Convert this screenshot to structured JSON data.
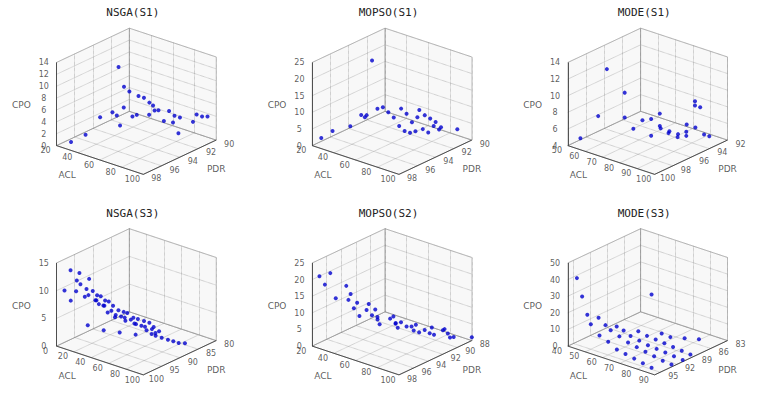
{
  "chart_data": [
    {
      "type": "scatter3d",
      "title": "NSGA(S1)",
      "x_label": "ACL",
      "y_label": "PDR",
      "z_label": "CPO",
      "xlim": [
        20,
        100
      ],
      "ylim": [
        90,
        98
      ],
      "zlim": [
        0,
        14
      ],
      "xticks": [
        20,
        40,
        60,
        80,
        100
      ],
      "yticks": [
        90,
        92,
        94,
        96,
        98
      ],
      "zticks": [
        0,
        2,
        4,
        6,
        8,
        10,
        12,
        14
      ],
      "color": "#0000CD",
      "grid": true,
      "x": [
        25,
        30,
        35,
        38,
        42,
        45,
        40,
        48,
        52,
        55,
        60,
        65,
        70,
        75,
        82,
        52,
        57,
        62,
        62,
        67,
        72,
        67,
        72,
        77,
        77,
        82,
        87,
        87,
        92
      ],
      "y": [
        97,
        96,
        95,
        94,
        94,
        94,
        93,
        93,
        93,
        92,
        92,
        91,
        91,
        91,
        90,
        95,
        95,
        95,
        94,
        94,
        94,
        93,
        93,
        93,
        92,
        92,
        91,
        90,
        90
      ],
      "z": [
        0.2,
        1.0,
        3.5,
        3.8,
        3.5,
        2.0,
        4.0,
        3.0,
        3.5,
        3.0,
        4.0,
        3.5,
        3.0,
        3.0,
        3.2,
        13.0,
        10.0,
        9.5,
        8.0,
        8.0,
        7.5,
        6.0,
        5.5,
        4.0,
        3.0,
        1.5,
        3.0,
        3.2,
        3.5
      ]
    },
    {
      "type": "scatter3d",
      "title": "MOPSO(S1)",
      "x_label": "ACL",
      "y_label": "PDR",
      "z_label": "CPO",
      "xlim": [
        20,
        100
      ],
      "ylim": [
        90,
        98
      ],
      "zlim": [
        0,
        25
      ],
      "xticks": [
        20,
        40,
        60,
        80,
        100
      ],
      "yticks": [
        90,
        92,
        94,
        96,
        98
      ],
      "zticks": [
        0,
        5,
        10,
        15,
        20,
        25
      ],
      "color": "#0000CD",
      "grid": true,
      "x": [
        20,
        22,
        30,
        35,
        40,
        45,
        50,
        55,
        60,
        65,
        70,
        75,
        80,
        85,
        90,
        60,
        65,
        70,
        75,
        80,
        85,
        90,
        95,
        60,
        65,
        70,
        75,
        80,
        95
      ],
      "y": [
        97,
        96,
        95,
        94,
        95,
        95,
        95,
        95,
        95,
        95,
        95,
        95,
        95,
        95,
        95,
        93,
        93,
        93,
        93,
        93,
        93,
        93,
        93,
        91,
        91,
        91,
        91,
        91,
        91
      ],
      "z": [
        1.0,
        2.0,
        3.0,
        5.0,
        7.5,
        8.0,
        25.0,
        11.0,
        12.0,
        11.0,
        10.0,
        8.0,
        7.0,
        7.0,
        8.0,
        9.0,
        8.0,
        6.0,
        8.0,
        5.0,
        4.5,
        7.0,
        6.5,
        6.0,
        5.0,
        4.5,
        4.0,
        3.0,
        4.0
      ]
    },
    {
      "type": "scatter3d",
      "title": "MODE(S1)",
      "x_label": "ACL",
      "y_label": "PDR",
      "z_label": "CPO",
      "xlim": [
        50,
        100
      ],
      "ylim": [
        92,
        100
      ],
      "zlim": [
        4,
        14
      ],
      "xticks": [
        50,
        60,
        70,
        80,
        90,
        100
      ],
      "yticks": [
        92,
        94,
        96,
        98,
        100
      ],
      "zticks": [
        4,
        6,
        8,
        10,
        12,
        14
      ],
      "color": "#0000CD",
      "grid": true,
      "x": [
        52,
        57,
        62,
        67,
        67,
        72,
        72,
        77,
        77,
        82,
        82,
        87,
        87,
        92,
        92,
        97,
        97,
        100,
        72,
        77,
        82,
        87,
        92,
        97,
        100
      ],
      "y": [
        99,
        98,
        98,
        97,
        97,
        97,
        96,
        96,
        96,
        96,
        96,
        96,
        95,
        95,
        95,
        95,
        95,
        95,
        94,
        94,
        94,
        94,
        94,
        94,
        94
      ],
      "z": [
        4.5,
        7.0,
        13.0,
        10.0,
        7.0,
        6.0,
        6.5,
        7.0,
        5.0,
        8.0,
        6.5,
        6.0,
        5.0,
        6.0,
        5.5,
        9.5,
        10.0,
        9.5,
        4.5,
        4.5,
        4.5,
        6.0,
        6.0,
        5.5,
        5.5
      ]
    },
    {
      "type": "scatter3d",
      "title": "NSGA(S3)",
      "x_label": "ACL",
      "y_label": "PDR",
      "z_label": "CPO",
      "xlim": [
        0,
        100
      ],
      "ylim": [
        80,
        100
      ],
      "zlim": [
        0,
        15
      ],
      "xticks": [
        0,
        20,
        40,
        60,
        80,
        100
      ],
      "yticks": [
        80,
        85,
        90,
        95,
        100
      ],
      "zticks": [
        0,
        5,
        10,
        15
      ],
      "color": "#0000CD",
      "grid": true,
      "x": [
        5,
        8,
        12,
        15,
        18,
        10,
        15,
        20,
        22,
        25,
        20,
        25,
        28,
        30,
        32,
        25,
        30,
        33,
        35,
        38,
        30,
        35,
        38,
        40,
        43,
        38,
        42,
        45,
        48,
        50,
        45,
        48,
        52,
        55,
        58,
        52,
        56,
        60,
        63,
        66,
        60,
        65,
        68,
        70,
        72,
        68,
        72,
        75,
        78,
        80,
        82,
        85,
        15,
        25,
        35,
        45,
        55
      ],
      "y": [
        99,
        98,
        99,
        98,
        98,
        97,
        97,
        97,
        97,
        97,
        96,
        96,
        96,
        96,
        96,
        95,
        95,
        95,
        95,
        95,
        94,
        94,
        94,
        94,
        94,
        93,
        93,
        93,
        93,
        93,
        92,
        92,
        92,
        92,
        92,
        91,
        91,
        91,
        91,
        91,
        90,
        90,
        90,
        90,
        90,
        89,
        89,
        89,
        88,
        87,
        86,
        85,
        95,
        93,
        91,
        89,
        87
      ],
      "z": [
        10.0,
        8.0,
        14.0,
        12.0,
        13.5,
        9.5,
        11.0,
        9.0,
        10.5,
        12.5,
        9.0,
        10.0,
        8.5,
        9.5,
        8.0,
        8.0,
        9.0,
        7.5,
        8.5,
        6.5,
        7.0,
        8.0,
        6.5,
        7.5,
        6.0,
        5.0,
        6.5,
        5.5,
        6.5,
        5.0,
        5.0,
        6.0,
        5.0,
        5.5,
        4.5,
        4.0,
        5.0,
        4.0,
        5.0,
        3.5,
        3.5,
        4.5,
        3.5,
        4.0,
        3.0,
        2.0,
        3.0,
        2.0,
        1.5,
        1.0,
        0.5,
        0.3,
        3.0,
        2.0,
        1.5,
        1.0,
        1.0
      ]
    },
    {
      "type": "scatter3d",
      "title": "MOPSO(S2)",
      "x_label": "ACL",
      "y_label": "PDR",
      "z_label": "CPO",
      "xlim": [
        20,
        100
      ],
      "ylim": [
        88,
        98
      ],
      "zlim": [
        0,
        25
      ],
      "xticks": [
        20,
        40,
        60,
        80,
        100
      ],
      "yticks": [
        88,
        90,
        92,
        94,
        96,
        98
      ],
      "zticks": [
        0,
        5,
        10,
        15,
        20,
        25
      ],
      "color": "#0000CD",
      "grid": true,
      "x": [
        20,
        25,
        30,
        35,
        38,
        40,
        42,
        45,
        48,
        50,
        52,
        55,
        58,
        60,
        62,
        65,
        68,
        70,
        72,
        75,
        78,
        80,
        82,
        85,
        88,
        90,
        92,
        95,
        98,
        100,
        30,
        40,
        50,
        60,
        70,
        80,
        90,
        100
      ],
      "y": [
        97,
        97,
        97,
        97,
        96,
        96,
        96,
        96,
        96,
        95,
        95,
        95,
        95,
        95,
        95,
        94,
        94,
        94,
        94,
        94,
        93,
        93,
        93,
        93,
        92,
        92,
        92,
        91,
        91,
        91,
        93,
        92,
        91,
        91,
        90,
        89,
        89,
        88
      ],
      "z": [
        20.0,
        18.0,
        22.0,
        15.0,
        18.0,
        14.0,
        16.0,
        12.0,
        14.0,
        11.0,
        13.0,
        10.0,
        12.0,
        10.0,
        8.0,
        9.0,
        10.0,
        8.0,
        7.0,
        9.0,
        7.0,
        6.0,
        8.0,
        6.0,
        5.0,
        7.0,
        5.0,
        6.0,
        5.0,
        4.0,
        5.0,
        4.0,
        3.0,
        3.0,
        2.0,
        2.0,
        1.0,
        1.0
      ]
    },
    {
      "type": "scatter3d",
      "title": "MODE(S3)",
      "x_label": "ACL",
      "y_label": "PDR",
      "z_label": "CPO",
      "xlim": [
        40,
        90
      ],
      "ylim": [
        83,
        96
      ],
      "zlim": [
        0,
        50
      ],
      "xticks": [
        40,
        50,
        60,
        70,
        80,
        90
      ],
      "yticks": [
        83,
        86,
        89,
        92,
        95
      ],
      "zticks": [
        0,
        10,
        20,
        30,
        40,
        50
      ],
      "color": "#0000CD",
      "grid": true,
      "x": [
        42,
        45,
        48,
        50,
        55,
        60,
        65,
        70,
        75,
        80,
        85,
        48,
        52,
        55,
        60,
        65,
        70,
        75,
        80,
        85,
        90,
        52,
        56,
        60,
        65,
        70,
        75,
        80,
        85,
        90,
        58,
        63,
        68,
        73,
        78,
        83,
        88,
        65,
        70,
        75,
        80,
        85
      ],
      "y": [
        95,
        95,
        95,
        95,
        95,
        95,
        95,
        95,
        95,
        95,
        95,
        93,
        93,
        93,
        93,
        93,
        93,
        93,
        93,
        93,
        93,
        91,
        91,
        91,
        91,
        91,
        91,
        91,
        91,
        91,
        89,
        89,
        89,
        89,
        89,
        89,
        89,
        87,
        87,
        86,
        85,
        95
      ],
      "z": [
        40.0,
        30.0,
        20.0,
        15.0,
        10.0,
        8.0,
        5.0,
        4.0,
        3.0,
        2.0,
        1.0,
        15.0,
        12.0,
        10.0,
        8.0,
        6.0,
        5.0,
        4.0,
        3.0,
        2.0,
        1.5,
        8.0,
        7.0,
        5.0,
        4.0,
        3.0,
        2.5,
        2.0,
        1.5,
        1.0,
        4.0,
        3.0,
        2.5,
        2.0,
        1.5,
        1.0,
        0.5,
        2.0,
        1.5,
        1.0,
        0.5,
        45.0
      ]
    }
  ]
}
